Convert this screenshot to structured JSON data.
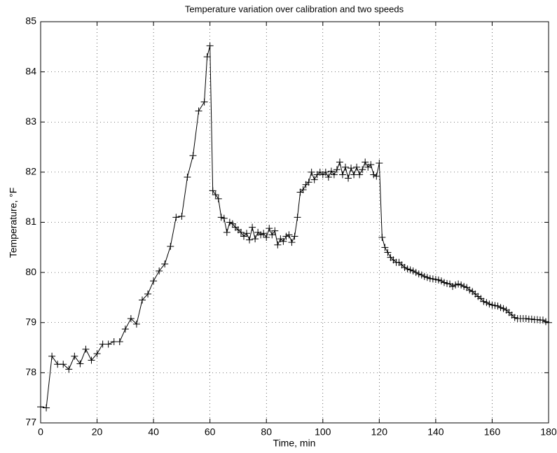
{
  "chart_data": {
    "type": "line",
    "title": "Temperature variation over calibration and two speeds",
    "xlabel": "Time, min",
    "ylabel": "Temperature, °F",
    "color": "#000000",
    "marker": "plus",
    "grid": true,
    "xlim": [
      0,
      180
    ],
    "ylim": [
      77,
      85
    ],
    "xticks": [
      0,
      20,
      40,
      60,
      80,
      100,
      120,
      140,
      160,
      180
    ],
    "yticks": [
      77,
      78,
      79,
      80,
      81,
      82,
      83,
      84,
      85
    ],
    "x": [
      0,
      2,
      4,
      6,
      8,
      10,
      12,
      14,
      16,
      18,
      20,
      22,
      24,
      26,
      28,
      30,
      32,
      34,
      36,
      38,
      40,
      42,
      44,
      46,
      48,
      50,
      52,
      54,
      56,
      58,
      59,
      60,
      61,
      62,
      63,
      64,
      65,
      66,
      67,
      68,
      69,
      70,
      71,
      72,
      73,
      74,
      75,
      76,
      77,
      78,
      79,
      80,
      81,
      82,
      83,
      84,
      85,
      86,
      87,
      88,
      89,
      90,
      91,
      92,
      93,
      94,
      95,
      96,
      97,
      98,
      99,
      100,
      101,
      102,
      103,
      104,
      105,
      106,
      107,
      108,
      109,
      110,
      111,
      112,
      113,
      114,
      115,
      116,
      117,
      118,
      119,
      120,
      121,
      122,
      123,
      124,
      125,
      126,
      127,
      128,
      129,
      130,
      131,
      132,
      133,
      134,
      135,
      136,
      137,
      138,
      139,
      140,
      141,
      142,
      143,
      144,
      145,
      146,
      147,
      148,
      149,
      150,
      151,
      152,
      153,
      154,
      155,
      156,
      157,
      158,
      159,
      160,
      161,
      162,
      163,
      164,
      165,
      166,
      167,
      168,
      169,
      170,
      171,
      172,
      173,
      174,
      175,
      176,
      177,
      178,
      179,
      180
    ],
    "values": [
      77.32,
      77.3,
      78.33,
      78.17,
      78.17,
      78.07,
      78.33,
      78.18,
      78.47,
      78.25,
      78.38,
      78.57,
      78.57,
      78.62,
      78.62,
      78.87,
      79.08,
      78.97,
      79.45,
      79.57,
      79.83,
      80.03,
      80.17,
      80.52,
      81.1,
      81.12,
      81.9,
      82.33,
      83.22,
      83.4,
      84.3,
      84.52,
      81.63,
      81.55,
      81.47,
      81.1,
      81.08,
      80.8,
      81.0,
      80.97,
      80.9,
      80.85,
      80.8,
      80.72,
      80.78,
      80.65,
      80.9,
      80.67,
      80.8,
      80.75,
      80.78,
      80.7,
      80.88,
      80.75,
      80.83,
      80.55,
      80.67,
      80.62,
      80.72,
      80.75,
      80.6,
      80.72,
      81.1,
      81.6,
      81.65,
      81.75,
      81.8,
      82.0,
      81.85,
      81.95,
      82.0,
      81.95,
      82.0,
      81.9,
      82.02,
      81.95,
      82.05,
      82.2,
      81.95,
      82.1,
      81.88,
      82.08,
      81.95,
      82.1,
      81.95,
      82.05,
      82.2,
      82.1,
      82.15,
      81.95,
      81.92,
      82.18,
      80.7,
      80.5,
      80.4,
      80.3,
      80.25,
      80.2,
      80.2,
      80.15,
      80.1,
      80.07,
      80.05,
      80.03,
      80.0,
      79.97,
      79.95,
      79.92,
      79.9,
      79.88,
      79.87,
      79.86,
      79.85,
      79.83,
      79.8,
      79.78,
      79.77,
      79.72,
      79.75,
      79.77,
      79.75,
      79.72,
      79.7,
      79.65,
      79.62,
      79.57,
      79.52,
      79.48,
      79.42,
      79.4,
      79.37,
      79.35,
      79.34,
      79.33,
      79.3,
      79.28,
      79.25,
      79.2,
      79.15,
      79.1,
      79.08,
      79.08,
      79.08,
      79.08,
      79.07,
      79.07,
      79.06,
      79.06,
      79.05,
      79.05,
      79.02,
      79.0
    ]
  }
}
